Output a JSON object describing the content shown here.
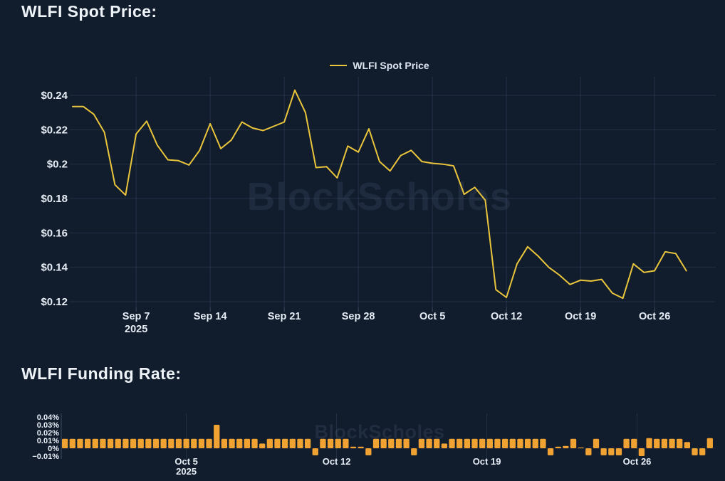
{
  "page": {
    "background_color": "#111c2d",
    "text_color": "#eef3f8",
    "gridline_color": "rgba(120,145,185,0.18)"
  },
  "chart_data": [
    {
      "type": "line",
      "title": "WLFI Spot Price:",
      "legend": [
        "WLFI Spot Price"
      ],
      "legend_position": "top-center",
      "line_color": "#e9c53b",
      "watermark": "BlockScholes",
      "grid": true,
      "ylim": [
        0.115,
        0.2475
      ],
      "yticks": {
        "labels": [
          "$0.24",
          "$0.22",
          "$0.2",
          "$0.18",
          "$0.16",
          "$0.14",
          "$0.12"
        ],
        "values": [
          0.24,
          0.22,
          0.2,
          0.18,
          0.16,
          0.14,
          0.12
        ]
      },
      "xticks": {
        "labels": [
          "Sep 7",
          "Sep 14",
          "Sep 21",
          "Sep 28",
          "Oct 5",
          "Oct 12",
          "Oct 19",
          "Oct 26"
        ],
        "indices": [
          6,
          13,
          20,
          27,
          34,
          41,
          48,
          55
        ],
        "year_sub_label": "2025",
        "year_sub_index": 0
      },
      "x": [
        "Sep 1",
        "Sep 2",
        "Sep 3",
        "Sep 4",
        "Sep 5",
        "Sep 6",
        "Sep 7",
        "Sep 8",
        "Sep 9",
        "Sep 10",
        "Sep 11",
        "Sep 12",
        "Sep 13",
        "Sep 14",
        "Sep 15",
        "Sep 16",
        "Sep 17",
        "Sep 18",
        "Sep 19",
        "Sep 20",
        "Sep 21",
        "Sep 22",
        "Sep 23",
        "Sep 24",
        "Sep 25",
        "Sep 26",
        "Sep 27",
        "Sep 28",
        "Sep 29",
        "Sep 30",
        "Oct 1",
        "Oct 2",
        "Oct 3",
        "Oct 4",
        "Oct 5",
        "Oct 6",
        "Oct 7",
        "Oct 8",
        "Oct 9",
        "Oct 10",
        "Oct 11",
        "Oct 12",
        "Oct 13",
        "Oct 14",
        "Oct 15",
        "Oct 16",
        "Oct 17",
        "Oct 18",
        "Oct 19",
        "Oct 20",
        "Oct 21",
        "Oct 22",
        "Oct 23",
        "Oct 24",
        "Oct 25",
        "Oct 26",
        "Oct 27",
        "Oct 28",
        "Oct 29"
      ],
      "values": [
        0.2335,
        0.2335,
        0.229,
        0.2185,
        0.188,
        0.182,
        0.2175,
        0.225,
        0.211,
        0.2025,
        0.202,
        0.1995,
        0.208,
        0.2235,
        0.209,
        0.214,
        0.2245,
        0.221,
        0.2195,
        0.222,
        0.2245,
        0.243,
        0.23,
        0.198,
        0.1985,
        0.192,
        0.2105,
        0.207,
        0.2205,
        0.2015,
        0.196,
        0.205,
        0.208,
        0.2015,
        0.2005,
        0.2,
        0.199,
        0.1825,
        0.1865,
        0.179,
        0.127,
        0.1225,
        0.142,
        0.152,
        0.1465,
        0.14,
        0.1355,
        0.13,
        0.1325,
        0.132,
        0.133,
        0.125,
        0.122,
        0.142,
        0.137,
        0.138,
        0.149,
        0.148,
        0.138
      ]
    },
    {
      "type": "bar",
      "title": "WLFI Funding Rate:",
      "bar_color": "#f0a232",
      "watermark": "BlockScholes",
      "unit": "%",
      "ylim": [
        -0.015,
        0.045
      ],
      "yticks": {
        "labels": [
          "0.04%",
          "0.03%",
          "0.02%",
          "0.01%",
          "0%",
          "−0.01%"
        ],
        "values": [
          0.04,
          0.03,
          0.02,
          0.01,
          0,
          -0.01
        ]
      },
      "xticks": {
        "labels": [
          "Oct 5",
          "Oct 12",
          "Oct 19",
          "Oct 26"
        ],
        "bar_positions": [
          16.0,
          35.8,
          55.6,
          75.4
        ],
        "year_sub_label": "2025",
        "year_sub_index": 0
      },
      "values_pct": [
        0.012,
        0.012,
        0.012,
        0.012,
        0.012,
        0.012,
        0.012,
        0.012,
        0.012,
        0.012,
        0.012,
        0.012,
        0.012,
        0.012,
        0.012,
        0.012,
        0.012,
        0.012,
        0.012,
        0.012,
        0.03,
        0.012,
        0.012,
        0.012,
        0.012,
        0.012,
        0.006,
        0.012,
        0.012,
        0.012,
        0.012,
        0.012,
        0.012,
        -0.009,
        0.012,
        0.012,
        0.012,
        0.012,
        0.002,
        0.002,
        -0.009,
        0.012,
        0.012,
        0.012,
        0.012,
        0.012,
        -0.009,
        0.012,
        0.012,
        0.012,
        0.006,
        0.012,
        0.012,
        0.012,
        0.012,
        0.012,
        0.012,
        0.012,
        0.012,
        0.012,
        0.012,
        0.012,
        0.012,
        0.012,
        -0.009,
        0.002,
        0.003,
        0.012,
        0.001,
        -0.009,
        0.012,
        -0.009,
        -0.009,
        -0.009,
        0.012,
        0.012,
        -0.01,
        0.013,
        0.012,
        0.012,
        0.012,
        0.012,
        0.008,
        -0.009,
        -0.009,
        0.013
      ]
    }
  ]
}
